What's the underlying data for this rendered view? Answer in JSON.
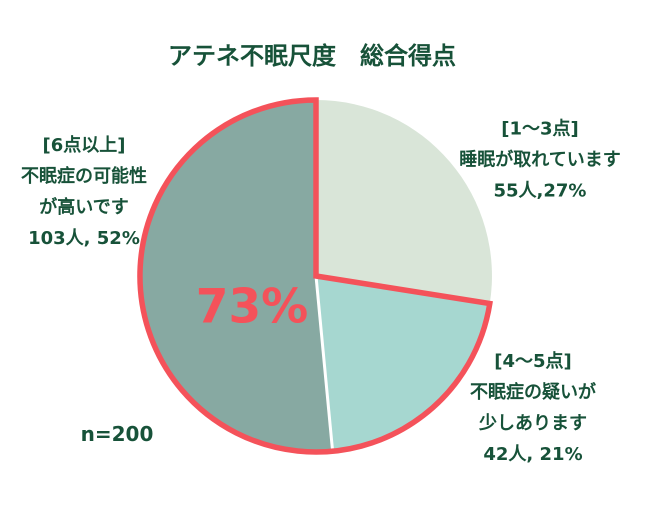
{
  "chart_data": {
    "type": "pie",
    "title": "アテネ不眠尺度　総合得点",
    "center_label": "73%",
    "sample_size": "n=200",
    "total": 200,
    "start_angle_deg": 0,
    "direction": "clockwise",
    "slices": [
      {
        "bracket": "[1〜3点]",
        "desc_lines": [
          "睡眠が取れています"
        ],
        "value_text": "55人,27%",
        "count": 55,
        "percent": 27,
        "color": "#d9e5d8",
        "outlined": false
      },
      {
        "bracket": "[4〜5点]",
        "desc_lines": [
          "不眠症の疑いが",
          "少しあります"
        ],
        "value_text": "42人, 21%",
        "count": 42,
        "percent": 21,
        "color": "#a6d7d0",
        "outlined": true
      },
      {
        "bracket": "[6点以上]",
        "desc_lines": [
          "不眠症の可能性",
          "が高いです"
        ],
        "value_text": "103人, 52%",
        "count": 103,
        "percent": 52,
        "color": "#87a9a2",
        "outlined": true
      }
    ],
    "colors": {
      "outline": "#f4525a",
      "center_label": "#f4525a",
      "text": "#175239",
      "divider": "#ffffff",
      "background": "#ffffff"
    }
  }
}
